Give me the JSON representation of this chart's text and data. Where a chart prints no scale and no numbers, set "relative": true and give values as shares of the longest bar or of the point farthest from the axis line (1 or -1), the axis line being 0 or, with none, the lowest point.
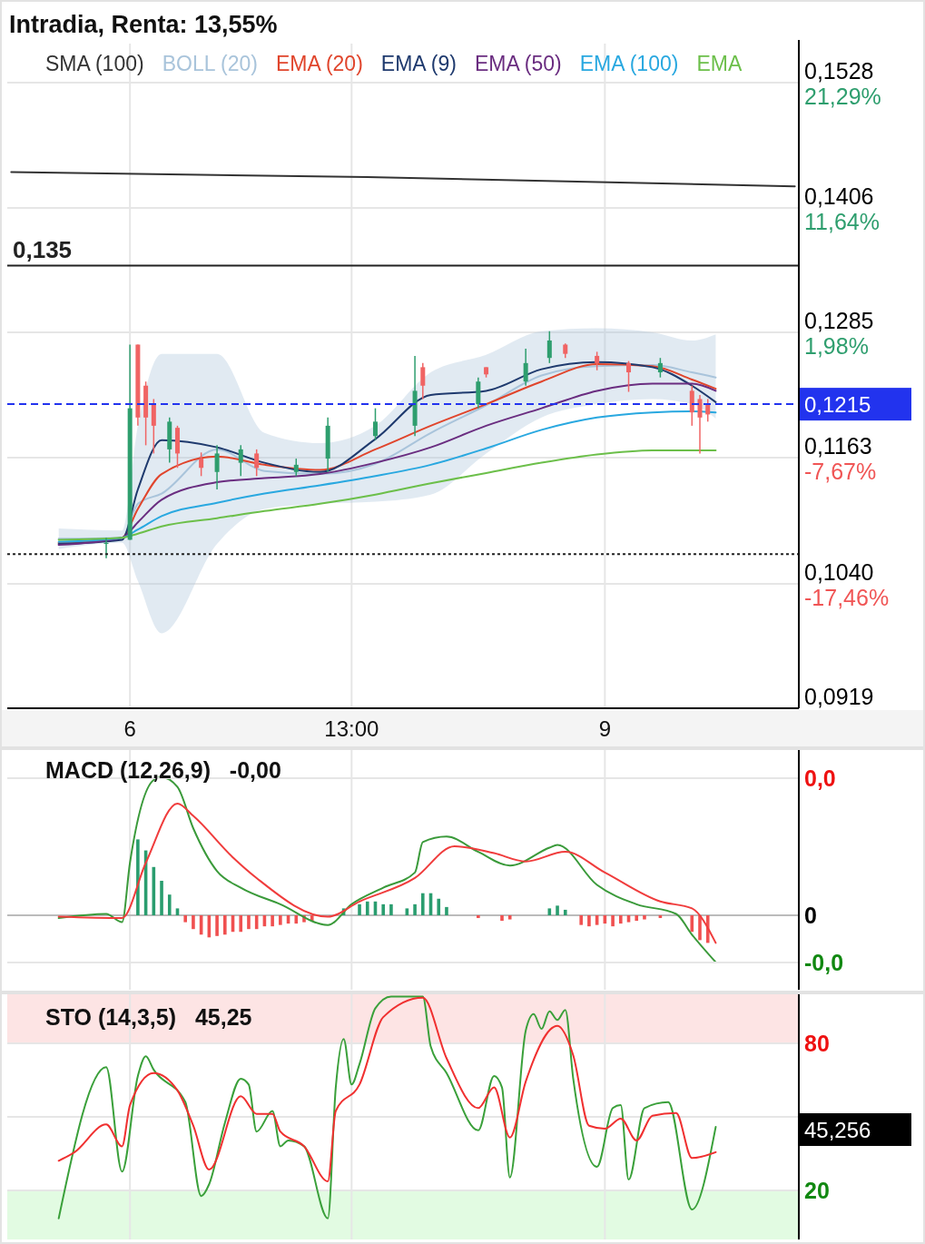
{
  "chart_data": [
    {
      "type": "line",
      "title": "Intradia, Renta: 13,55%",
      "legend": "top",
      "grid": true,
      "categories": [
        null,
        null,
        null,
        null,
        null,
        null,
        null,
        null,
        null,
        null,
        null,
        null,
        null,
        null,
        null,
        "6",
        null,
        null,
        null,
        null,
        null,
        null,
        null,
        null,
        null,
        null,
        null,
        null,
        null,
        null,
        null,
        null,
        null,
        null,
        null,
        null,
        null,
        null,
        null,
        null,
        null,
        null,
        null,
        "13:00",
        null,
        null,
        null,
        null,
        null,
        null,
        null,
        null,
        null,
        null,
        null,
        null,
        null,
        null,
        null,
        null,
        null,
        null,
        null,
        null,
        null,
        null,
        null,
        null,
        null,
        null,
        null,
        null,
        null,
        null,
        null,
        "9",
        null,
        null,
        null,
        null,
        null,
        null,
        null,
        null,
        null,
        null,
        null,
        null,
        null,
        null,
        null,
        null,
        null,
        null,
        null,
        null,
        null,
        null,
        null,
        null
      ],
      "ylim": [
        0.0919,
        0.1566
      ],
      "yticks": [
        {
          "value": 0.1528,
          "label": "0,1528"
        },
        {
          "value": 0.1406,
          "label": "0,1406"
        },
        {
          "value": 0.1285,
          "label": "0,1285"
        },
        {
          "value": 0.1163,
          "label": "0,1163"
        },
        {
          "value": 0.104,
          "label": "0,1040"
        },
        {
          "value": 0.0919,
          "label": "0,0919"
        }
      ],
      "series": [
        {
          "name": "SMA (100)",
          "color": "#333333",
          "values": [
            0.1441,
            null,
            null,
            null,
            null,
            null,
            null,
            null,
            null,
            null,
            null,
            null,
            null,
            null,
            null,
            null,
            null,
            null,
            null,
            null,
            null,
            null,
            null,
            null,
            null,
            null,
            null,
            null,
            null,
            null,
            null,
            null,
            null,
            null,
            null,
            null,
            null,
            null,
            null,
            null,
            null,
            null,
            null,
            null,
            null,
            0.1436,
            null,
            null,
            null,
            null,
            null,
            null,
            null,
            null,
            null,
            null,
            null,
            null,
            null,
            null,
            null,
            null,
            null,
            null,
            null,
            null,
            null,
            null,
            null,
            null,
            null,
            null,
            null,
            null,
            null,
            null,
            null,
            null,
            null,
            null,
            null,
            null,
            null,
            null,
            null,
            null,
            null,
            null,
            null,
            null,
            null,
            null,
            null,
            null,
            null,
            null,
            null,
            null,
            null,
            0.1427
          ]
        },
        {
          "name": "BOLL (20)",
          "color": "#a9c4db",
          "values": [
            null,
            null,
            null,
            null,
            null,
            null,
            0.1084,
            null,
            null,
            null,
            null,
            null,
            null,
            null,
            0.1085,
            null,
            0.1118,
            null,
            null,
            0.1128,
            null,
            null,
            null,
            null,
            null,
            null,
            0.1171,
            null,
            null,
            null,
            null,
            null,
            0.115,
            null,
            null,
            null,
            null,
            null,
            null,
            0.1147,
            null,
            null,
            null,
            null,
            null,
            null,
            0.1157,
            null,
            null,
            null,
            null,
            null,
            null,
            0.1187,
            null,
            null,
            null,
            null,
            null,
            null,
            0.1214,
            null,
            null,
            null,
            null,
            null,
            null,
            0.1243,
            null,
            null,
            null,
            null,
            null,
            null,
            0.1252,
            null,
            null,
            null,
            null,
            null,
            null,
            0.1253,
            null,
            null,
            null,
            null,
            0.1246,
            null,
            null,
            0.1241,
            null,
            null,
            null,
            null,
            null,
            null,
            null,
            null,
            null,
            null
          ],
          "lower": [
            null,
            null,
            null,
            null,
            null,
            null,
            0.1074,
            null,
            null,
            null,
            null,
            null,
            null,
            null,
            0.108,
            null,
            0.1043,
            null,
            null,
            0.0992,
            null,
            null,
            null,
            null,
            null,
            null,
            0.1079,
            null,
            null,
            null,
            null,
            null,
            0.1113,
            null,
            null,
            null,
            null,
            null,
            null,
            0.1118,
            null,
            null,
            null,
            null,
            null,
            null,
            0.112,
            null,
            null,
            null,
            null,
            null,
            null,
            0.1127,
            null,
            null,
            null,
            null,
            null,
            null,
            0.1167,
            null,
            null,
            null,
            null,
            null,
            null,
            0.1202,
            null,
            null,
            null,
            null,
            null,
            null,
            0.1215,
            null,
            null,
            null,
            null,
            null,
            null,
            0.122,
            null,
            null,
            null,
            null,
            0.1215,
            null,
            null,
            0.1201,
            null,
            null,
            null,
            null,
            null,
            null,
            null,
            null,
            null,
            null
          ],
          "upper": [
            null,
            null,
            null,
            null,
            null,
            null,
            0.1094,
            null,
            null,
            null,
            null,
            null,
            null,
            null,
            0.1092,
            null,
            0.1194,
            null,
            null,
            0.1264,
            null,
            null,
            null,
            null,
            null,
            null,
            0.1264,
            null,
            null,
            null,
            null,
            null,
            0.1187,
            null,
            null,
            null,
            null,
            null,
            null,
            0.1177,
            null,
            null,
            null,
            null,
            null,
            null,
            0.1194,
            null,
            null,
            null,
            null,
            null,
            null,
            0.1246,
            null,
            null,
            null,
            null,
            null,
            null,
            0.1263,
            null,
            null,
            null,
            null,
            null,
            null,
            0.1286,
            null,
            null,
            null,
            null,
            null,
            null,
            0.1289,
            null,
            null,
            null,
            null,
            null,
            null,
            0.1285,
            null,
            null,
            null,
            null,
            0.1277,
            null,
            null,
            0.1283,
            null,
            null,
            null,
            null,
            null,
            null,
            null,
            null,
            null,
            null
          ]
        },
        {
          "name": "EMA (20)",
          "color": "#e0452c",
          "values": [
            null,
            null,
            null,
            null,
            null,
            null,
            0.108,
            null,
            null,
            null,
            null,
            null,
            null,
            null,
            0.1085,
            null,
            0.1113,
            null,
            null,
            0.1147,
            null,
            null,
            null,
            null,
            null,
            null,
            0.1164,
            null,
            null,
            null,
            null,
            null,
            0.1156,
            null,
            null,
            null,
            null,
            null,
            null,
            0.1151,
            null,
            null,
            null,
            null,
            null,
            null,
            0.1171,
            null,
            null,
            null,
            null,
            null,
            null,
            0.1194,
            null,
            null,
            null,
            null,
            null,
            null,
            0.1215,
            null,
            null,
            null,
            null,
            null,
            null,
            0.1237,
            null,
            null,
            null,
            null,
            null,
            null,
            0.1254,
            null,
            null,
            null,
            null,
            null,
            null,
            0.1252,
            null,
            null,
            null,
            null,
            0.1239,
            null,
            null,
            0.123,
            null,
            null,
            null,
            null,
            null,
            null,
            null,
            null,
            null,
            null
          ]
        },
        {
          "name": "EMA (9)",
          "color": "#1f3a6e",
          "values": [
            null,
            null,
            null,
            null,
            null,
            null,
            0.1079,
            null,
            null,
            null,
            null,
            null,
            null,
            null,
            0.1083,
            null,
            0.1132,
            null,
            null,
            0.118,
            null,
            null,
            null,
            null,
            null,
            null,
            0.1173,
            null,
            null,
            null,
            null,
            null,
            0.1158,
            null,
            null,
            null,
            null,
            null,
            null,
            0.1149,
            null,
            null,
            null,
            null,
            null,
            null,
            0.1181,
            null,
            null,
            null,
            null,
            null,
            null,
            0.1224,
            null,
            null,
            null,
            null,
            null,
            null,
            0.1228,
            null,
            null,
            null,
            null,
            null,
            null,
            0.1249,
            null,
            null,
            null,
            null,
            null,
            null,
            0.1256,
            null,
            null,
            null,
            null,
            null,
            null,
            0.1251,
            null,
            null,
            null,
            null,
            0.1233,
            null,
            null,
            0.1217,
            null,
            null,
            null,
            null,
            null,
            null,
            null,
            null,
            null,
            null
          ]
        },
        {
          "name": "EMA (50)",
          "color": "#6a2d80",
          "values": [
            null,
            null,
            null,
            null,
            null,
            null,
            0.1078,
            null,
            null,
            null,
            null,
            null,
            null,
            null,
            0.1085,
            null,
            0.11,
            null,
            null,
            0.1122,
            null,
            null,
            null,
            null,
            null,
            null,
            0.1139,
            null,
            null,
            null,
            null,
            null,
            0.1143,
            null,
            null,
            null,
            null,
            null,
            null,
            0.1147,
            null,
            null,
            null,
            null,
            null,
            null,
            0.1158,
            null,
            null,
            null,
            null,
            null,
            null,
            0.1173,
            null,
            null,
            null,
            null,
            null,
            null,
            0.1194,
            null,
            null,
            null,
            null,
            null,
            null,
            0.1211,
            null,
            null,
            null,
            null,
            null,
            null,
            0.1228,
            null,
            null,
            null,
            null,
            null,
            null,
            0.1235,
            null,
            null,
            null,
            null,
            0.1235,
            null,
            null,
            0.1228,
            null,
            null,
            null,
            null,
            null,
            null,
            null,
            null,
            null,
            null
          ]
        },
        {
          "name": "EMA (100)",
          "color": "#29a8e0",
          "values": [
            null,
            null,
            null,
            null,
            null,
            null,
            0.1081,
            null,
            null,
            null,
            null,
            null,
            null,
            null,
            0.1085,
            null,
            0.1093,
            null,
            null,
            0.1106,
            null,
            null,
            null,
            null,
            null,
            null,
            0.1119,
            null,
            null,
            null,
            null,
            null,
            0.1128,
            null,
            null,
            null,
            null,
            null,
            null,
            0.1136,
            null,
            null,
            null,
            null,
            null,
            null,
            0.1145,
            null,
            null,
            null,
            null,
            null,
            null,
            0.1156,
            null,
            null,
            null,
            null,
            null,
            null,
            0.1172,
            null,
            null,
            null,
            null,
            null,
            null,
            0.119,
            null,
            null,
            null,
            null,
            null,
            null,
            0.1202,
            null,
            null,
            null,
            null,
            null,
            null,
            0.1207,
            null,
            null,
            null,
            null,
            0.1208,
            null,
            null,
            0.1207,
            null,
            null,
            null,
            null,
            null,
            null,
            null,
            null,
            null,
            null
          ]
        },
        {
          "name": "EMA",
          "color": "#6cbf4a",
          "values": [
            null,
            null,
            null,
            null,
            null,
            null,
            0.1083,
            null,
            null,
            null,
            null,
            null,
            null,
            null,
            0.1085,
            null,
            0.1089,
            null,
            null,
            0.1096,
            null,
            null,
            null,
            null,
            null,
            null,
            0.1104,
            null,
            null,
            null,
            null,
            null,
            0.1111,
            null,
            null,
            null,
            null,
            null,
            null,
            0.1118,
            null,
            null,
            null,
            null,
            null,
            null,
            0.1127,
            null,
            null,
            null,
            null,
            null,
            null,
            0.1138,
            null,
            null,
            null,
            null,
            null,
            null,
            0.1148,
            null,
            null,
            null,
            null,
            null,
            null,
            0.1158,
            null,
            null,
            null,
            null,
            null,
            null,
            0.1166,
            null,
            null,
            null,
            null,
            null,
            null,
            0.117,
            null,
            null,
            null,
            null,
            0.117,
            null,
            null,
            0.117,
            null,
            null,
            null,
            null,
            null,
            null,
            null,
            null,
            null,
            null
          ]
        },
        {
          "type": "candlestick",
          "color": "#2e9e6e",
          "ohlc": [
            null,
            null,
            null,
            null,
            null,
            null,
            null,
            null,
            null,
            null,
            null,
            null,
            [
              0.1079,
              0.1085,
              0.1065,
              0.108
            ],
            null,
            null,
            [
              0.1083,
              0.1273,
              0.1083,
              0.1211
            ],
            null,
            null,
            null,
            null,
            [
              0.1171,
              0.1202,
              0.1158,
              0.1198
            ],
            null,
            null,
            null,
            null,
            null,
            [
              0.1149,
              0.1175,
              0.1132,
              0.1167
            ],
            null,
            null,
            [
              0.1158,
              0.1175,
              0.1145,
              0.1171
            ],
            null,
            null,
            null,
            null,
            null,
            null,
            [
              0.1149,
              0.1162,
              0.1145,
              0.1156
            ],
            null,
            null,
            null,
            [
              0.1162,
              0.1202,
              0.1149,
              0.1194
            ],
            null,
            null,
            null,
            null,
            null,
            [
              0.1184,
              0.1211,
              0.118,
              0.1198
            ],
            null,
            null,
            null,
            null,
            [
              0.1194,
              0.1262,
              0.1184,
              0.1228
            ],
            null,
            null,
            null,
            null,
            null,
            null,
            null,
            [
              0.1215,
              0.1241,
              0.1211,
              0.1237
            ],
            null,
            null,
            null,
            null,
            null,
            [
              0.1237,
              0.1269,
              0.1233,
              0.1255
            ],
            null,
            null,
            [
              0.126,
              0.1286,
              0.1255,
              0.1277
            ],
            null,
            null,
            null,
            null,
            null,
            null,
            null,
            null,
            null,
            null,
            null,
            null,
            null,
            [
              0.1246,
              0.126,
              0.1241,
              0.1255
            ],
            null,
            null,
            null,
            null,
            null,
            null,
            null,
            null,
            null,
            null,
            null,
            null,
            null,
            null,
            null,
            null,
            null
          ]
        },
        {
          "type": "candlestick",
          "color": "#f06464",
          "ohlc": [
            null,
            null,
            null,
            null,
            null,
            null,
            null,
            null,
            null,
            null,
            null,
            null,
            null,
            null,
            null,
            null,
            [
              0.1273,
              0.1273,
              0.1194,
              0.1202
            ],
            [
              0.1233,
              0.1237,
              0.1175,
              0.1202
            ],
            [
              0.1215,
              0.122,
              0.1167,
              0.1194
            ],
            null,
            null,
            [
              0.1192,
              0.1194,
              0.1153,
              0.1167
            ],
            null,
            null,
            [
              0.1162,
              0.1168,
              0.1145,
              0.1153
            ],
            null,
            null,
            null,
            null,
            null,
            null,
            [
              0.1167,
              0.1171,
              0.1145,
              0.1153
            ],
            null,
            null,
            null,
            null,
            null,
            null,
            null,
            null,
            null,
            null,
            null,
            null,
            null,
            null,
            null,
            null,
            null,
            null,
            null,
            null,
            [
              0.1251,
              0.1255,
              0.122,
              0.1233
            ],
            null,
            null,
            null,
            null,
            null,
            null,
            null,
            [
              0.1251,
              0.1251,
              0.1241,
              0.1244
            ],
            null,
            null,
            null,
            null,
            null,
            null,
            null,
            null,
            null,
            [
              0.1273,
              0.1274,
              0.126,
              0.1264
            ],
            null,
            null,
            null,
            [
              0.1262,
              0.1266,
              0.1248,
              0.1255
            ],
            null,
            null,
            null,
            [
              0.1255,
              0.1257,
              0.1227,
              0.1246
            ],
            null,
            null,
            null,
            null,
            null,
            null,
            null,
            [
              0.1228,
              0.1233,
              0.1194,
              0.1207
            ],
            [
              0.122,
              0.1224,
              0.1167,
              0.1202
            ],
            [
              0.1215,
              0.122,
              0.1198,
              0.1205
            ],
            null,
            null,
            null,
            null,
            null,
            null,
            null,
            null,
            null,
            null,
            null
          ]
        }
      ],
      "ref_lines": [
        {
          "axis": "y",
          "value": 0.135,
          "label": "0,135",
          "color": "#222222",
          "line_style": "solid"
        },
        {
          "axis": "y",
          "value": 0.1215,
          "label": "0,1215",
          "color": "#2233ee",
          "line_style": "dashed"
        },
        {
          "axis": "y",
          "value": 0.1069,
          "color": "#222222",
          "line_style": "dotted"
        }
      ],
      "annotations": [
        "21,29%",
        "11,64%",
        "1,98%",
        "-7,67%",
        "-17,46%"
      ]
    },
    {
      "type": "line",
      "title": "MACD (12,26,9)   -0,00",
      "relative": true,
      "grid": "x",
      "tick_labels": false,
      "series": [
        {
          "type": "bar",
          "color": "#2a9d6f",
          "values": [
            null,
            null,
            null,
            null,
            null,
            null,
            null,
            null,
            null,
            null,
            null,
            null,
            null,
            null,
            null,
            null,
            0.55,
            0.47,
            0.35,
            0.25,
            0.15,
            0.05,
            null,
            null,
            null,
            null,
            null,
            null,
            null,
            null,
            null,
            null,
            null,
            null,
            null,
            null,
            null,
            null,
            null,
            null,
            null,
            null,
            0.05,
            null,
            0.08,
            0.1,
            0.1,
            0.08,
            0.08,
            null,
            0.05,
            0.08,
            0.16,
            0.16,
            0.12,
            0.06,
            null,
            null,
            null,
            null,
            null,
            null,
            null,
            null,
            null,
            null,
            null,
            null,
            0.05,
            0.07,
            0.04,
            null,
            null,
            null,
            null,
            null,
            null,
            null,
            null,
            null,
            null,
            null,
            null,
            null,
            null,
            null,
            null,
            null,
            null,
            null,
            null,
            null,
            null,
            null,
            null,
            null,
            null,
            null,
            null,
            null
          ]
        },
        {
          "type": "bar",
          "color": "#f05050",
          "values": [
            null,
            null,
            null,
            null,
            null,
            null,
            null,
            null,
            null,
            null,
            null,
            null,
            null,
            null,
            null,
            null,
            null,
            null,
            null,
            null,
            null,
            null,
            -0.05,
            -0.1,
            -0.14,
            -0.16,
            -0.15,
            -0.14,
            -0.12,
            -0.12,
            -0.1,
            -0.1,
            -0.08,
            -0.08,
            -0.07,
            -0.06,
            -0.06,
            -0.05,
            -0.04,
            null,
            null,
            null,
            null,
            null,
            null,
            null,
            null,
            null,
            null,
            null,
            null,
            null,
            null,
            null,
            null,
            null,
            null,
            null,
            null,
            -0.02,
            null,
            null,
            -0.04,
            -0.03,
            null,
            null,
            null,
            null,
            null,
            null,
            null,
            null,
            -0.07,
            -0.08,
            -0.07,
            -0.06,
            -0.08,
            -0.06,
            -0.05,
            -0.04,
            -0.03,
            null,
            -0.02,
            null,
            null,
            null,
            -0.12,
            -0.18,
            -0.2,
            null,
            null,
            null,
            null,
            null,
            null,
            null,
            null,
            null,
            null,
            null
          ]
        },
        {
          "color": "#3a9a3a",
          "values": [
            null,
            null,
            null,
            null,
            null,
            null,
            -0.02,
            null,
            null,
            null,
            null,
            null,
            0.01,
            null,
            -0.05,
            0.38,
            null,
            null,
            0.98,
            1.0,
            null,
            0.93,
            null,
            0.63,
            null,
            null,
            0.32,
            null,
            null,
            0.2,
            null,
            null,
            null,
            null,
            0.08,
            null,
            null,
            null,
            null,
            null,
            -0.07,
            null,
            null,
            0.08,
            null,
            null,
            null,
            0.2,
            null,
            null,
            null,
            0.31,
            0.53,
            null,
            null,
            0.57,
            null,
            null,
            null,
            0.46,
            null,
            null,
            null,
            0.36,
            null,
            null,
            null,
            null,
            0.49,
            0.51,
            null,
            null,
            null,
            null,
            0.22,
            null,
            null,
            null,
            null,
            0.08,
            null,
            null,
            null,
            null,
            0.01,
            null,
            -0.14,
            null,
            null,
            -0.34,
            null,
            null,
            null,
            null,
            null,
            null,
            null,
            null,
            null,
            null
          ]
        },
        {
          "color": "#f03c3c",
          "values": [
            null,
            null,
            null,
            null,
            null,
            null,
            -0.01,
            null,
            null,
            null,
            null,
            null,
            null,
            null,
            -0.02,
            null,
            null,
            0.38,
            null,
            null,
            null,
            0.81,
            null,
            0.72,
            null,
            null,
            null,
            null,
            0.42,
            null,
            null,
            0.27,
            null,
            null,
            null,
            null,
            null,
            null,
            null,
            null,
            -0.01,
            null,
            null,
            null,
            0.1,
            null,
            null,
            null,
            null,
            null,
            null,
            0.27,
            null,
            null,
            null,
            null,
            0.5,
            null,
            null,
            null,
            null,
            0.45,
            null,
            null,
            null,
            0.39,
            null,
            null,
            null,
            null,
            0.46,
            null,
            null,
            null,
            null,
            0.31,
            null,
            null,
            null,
            null,
            null,
            null,
            0.1,
            null,
            null,
            null,
            0.05,
            null,
            null,
            -0.2,
            null,
            null,
            null,
            null,
            null,
            null,
            null,
            null,
            null,
            null
          ]
        }
      ],
      "annotations": [
        "0,0",
        "0",
        "-0,0"
      ]
    },
    {
      "type": "line",
      "title": "STO (14,3,5)   45,25",
      "grid": true,
      "tick_labels": "y",
      "ylim": [
        0,
        100
      ],
      "yticks": [
        20,
        {
          "value": 50,
          "label": null
        },
        80
      ],
      "bands": [
        {
          "axis": "y",
          "from": 80,
          "to": 100,
          "color": "#fde4e4"
        },
        {
          "axis": "y",
          "from": 0,
          "to": 20,
          "color": "#e2fbe2"
        }
      ],
      "series": [
        {
          "color": "#3aa03a",
          "values": [
            null,
            null,
            null,
            null,
            null,
            null,
            8.6,
            null,
            null,
            null,
            null,
            null,
            70.3,
            null,
            27.7,
            null,
            66.7,
            74.7,
            69.2,
            null,
            null,
            null,
            56.0,
            null,
            17.7,
            22.5,
            null,
            47.6,
            null,
            65.6,
            63.2,
            44.0,
            null,
            52.4,
            38.0,
            40.4,
            null,
            38.0,
            null,
            null,
            8.6,
            62.0,
            81.8,
            63.2,
            71.5,
            null,
            94.3,
            null,
            99.1,
            null,
            null,
            null,
            99.1,
            78.7,
            null,
            67.9,
            null,
            null,
            null,
            44.5,
            null,
            66.7,
            62.0,
            25.3,
            null,
            85.2,
            91.9,
            85.9,
            93.1,
            89.5,
            93.6,
            65.6,
            null,
            null,
            29.6,
            null,
            53.6,
            54.8,
            24.4,
            null,
            53.6,
            null,
            null,
            56.0,
            null,
            null,
            12.2,
            null,
            null,
            45.9,
            null,
            null,
            null,
            null,
            null,
            null,
            null,
            null,
            null,
            null
          ]
        },
        {
          "color": "#f03030",
          "values": [
            null,
            null,
            null,
            null,
            null,
            null,
            32.1,
            null,
            35.6,
            null,
            null,
            null,
            46.9,
            null,
            38.0,
            54.8,
            null,
            null,
            67.9,
            null,
            null,
            60.8,
            null,
            46.4,
            null,
            28.5,
            null,
            null,
            null,
            58.4,
            null,
            51.2,
            null,
            51.2,
            44.0,
            null,
            null,
            38.0,
            null,
            null,
            23.7,
            52.4,
            null,
            null,
            63.2,
            null,
            null,
            90.7,
            null,
            null,
            null,
            null,
            98.6,
            null,
            null,
            73.9,
            null,
            null,
            null,
            53.6,
            null,
            62.0,
            null,
            41.6,
            null,
            64.4,
            null,
            null,
            null,
            87.1,
            null,
            75.1,
            null,
            46.4,
            null,
            45.2,
            null,
            49.3,
            null,
            40.4,
            null,
            50.5,
            null,
            null,
            51.6,
            null,
            33.2,
            null,
            null,
            35.6,
            null,
            null,
            null,
            null,
            null,
            null,
            null,
            null,
            null,
            null
          ]
        }
      ],
      "annotations": [
        "45,256"
      ]
    }
  ]
}
